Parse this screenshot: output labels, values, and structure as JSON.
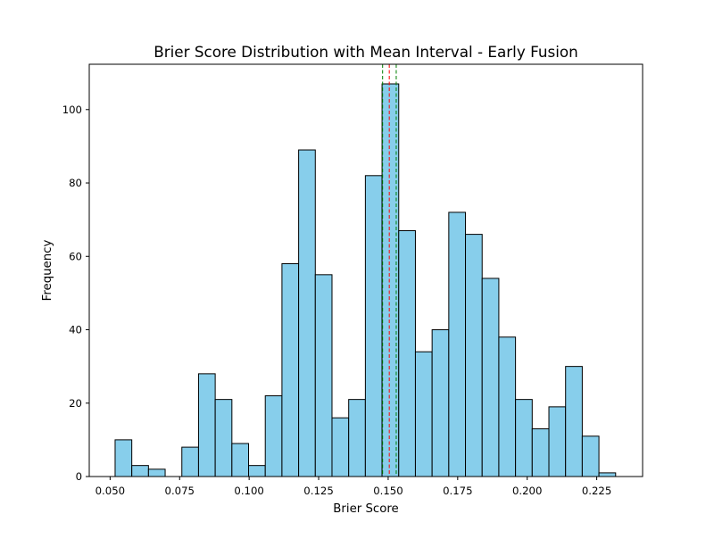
{
  "chart_data": {
    "type": "histogram",
    "title": "Brier Score Distribution with Mean Interval - Early Fusion",
    "xlabel": "Brier Score",
    "ylabel": "Frequency",
    "xlim": [
      0.0425,
      0.2415
    ],
    "ylim": [
      0,
      112.35
    ],
    "xticks": [
      0.05,
      0.075,
      0.1,
      0.125,
      0.15,
      0.175,
      0.2,
      0.225
    ],
    "xtick_labels": [
      "0.050",
      "0.075",
      "0.100",
      "0.125",
      "0.150",
      "0.175",
      "0.200",
      "0.225"
    ],
    "yticks": [
      0,
      20,
      40,
      60,
      80,
      100
    ],
    "ytick_labels": [
      "0",
      "20",
      "40",
      "60",
      "80",
      "100"
    ],
    "bin_start": 0.0518,
    "bin_width": 0.006,
    "counts": [
      10,
      3,
      2,
      0,
      8,
      28,
      21,
      9,
      3,
      22,
      58,
      89,
      55,
      16,
      21,
      82,
      107,
      67,
      34,
      40,
      72,
      66,
      54,
      38,
      21,
      13,
      19,
      30,
      11,
      1
    ],
    "mean": 0.1504,
    "ci_lower": 0.148,
    "ci_upper": 0.1529,
    "bar_color": "#87ceeb",
    "edge_color": "#000000",
    "mean_line_color": "#ff0000",
    "ci_line_color": "#008000",
    "grid": false
  }
}
